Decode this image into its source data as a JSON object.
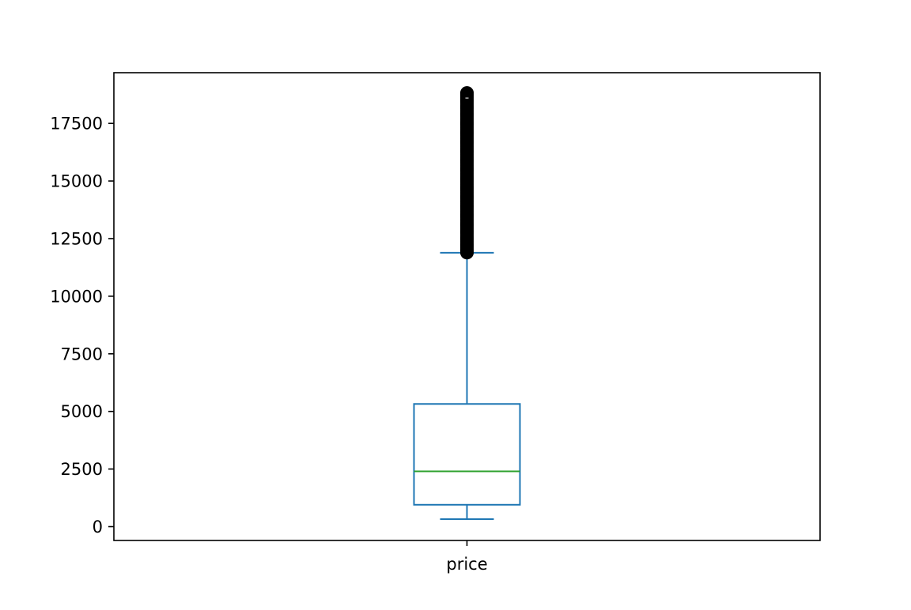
{
  "chart_data": {
    "type": "box",
    "title": "",
    "xlabel": "",
    "ylabel": "",
    "categories": [
      "price"
    ],
    "ylim": [
      -600,
      19700
    ],
    "yticks": [
      0,
      2500,
      5000,
      7500,
      10000,
      12500,
      15000,
      17500
    ],
    "ytick_labels": [
      "0",
      "2500",
      "5000",
      "7500",
      "10000",
      "12500",
      "15000",
      "17500"
    ],
    "grid": false,
    "box": {
      "whisker_low": 326,
      "q1": 950,
      "median": 2401,
      "q3": 5324,
      "whisker_high": 11886,
      "outliers_min": 11890,
      "outliers_max": 18823,
      "outlier_samples": [
        11900,
        12000,
        12200,
        12500,
        12800,
        13100,
        13500,
        13900,
        14300,
        14700,
        15100,
        15500,
        15900,
        16300,
        16700,
        17100,
        17500,
        17900,
        18200,
        18500,
        18700,
        18823
      ]
    },
    "colors": {
      "box": "#1f77b4",
      "median": "#2ca02c",
      "outlier": "#000000",
      "axes": "#000000"
    }
  }
}
